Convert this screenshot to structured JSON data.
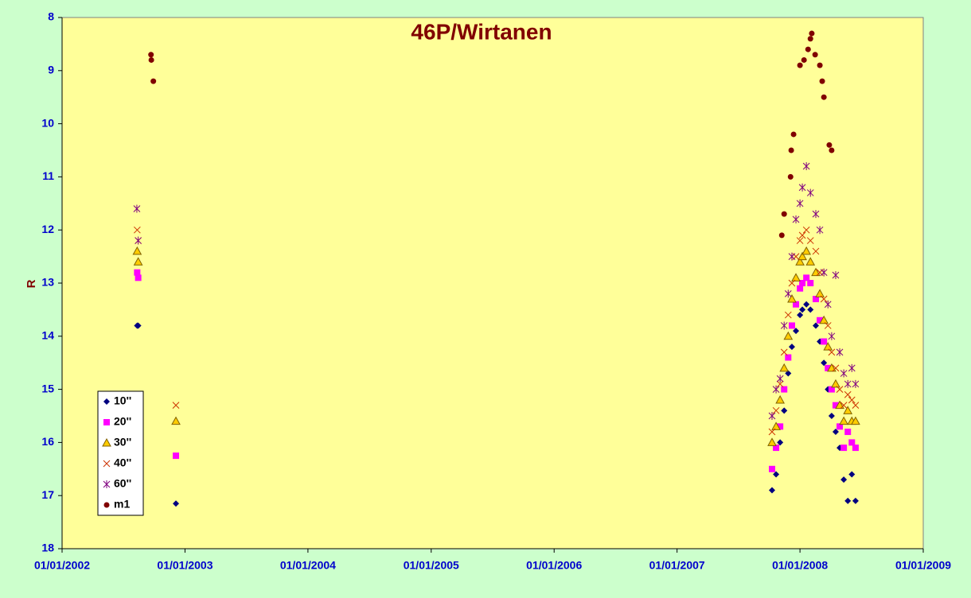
{
  "chart_data": {
    "type": "scatter",
    "title": "46P/Wirtanen",
    "ylabel": "R",
    "xlim": [
      "01/01/2002",
      "01/01/2009"
    ],
    "xticks": [
      "01/01/2002",
      "01/01/2003",
      "01/01/2004",
      "01/01/2005",
      "01/01/2006",
      "01/01/2007",
      "01/01/2008",
      "01/01/2009"
    ],
    "ylim": [
      18,
      8
    ],
    "yticks": [
      8,
      9,
      10,
      11,
      12,
      13,
      14,
      15,
      16,
      17,
      18
    ],
    "legend": "lower-left",
    "grid": false,
    "series": [
      {
        "name": "10''",
        "color": "#000080",
        "marker": "diamond",
        "x": [
          "12/08/2002",
          "15/08/2002",
          "05/12/2002",
          "10/10/2007",
          "22/10/2007",
          "03/11/2007",
          "15/11/2007",
          "27/11/2007",
          "08/12/2007",
          "20/12/2007",
          "01/01/2008",
          "08/01/2008",
          "20/01/2008",
          "01/02/2008",
          "17/02/2008",
          "29/02/2008",
          "12/03/2008",
          "24/03/2008",
          "04/04/2008",
          "16/04/2008",
          "28/04/2008",
          "10/05/2008",
          "22/05/2008",
          "03/06/2008",
          "14/06/2008"
        ],
        "values": [
          13.8,
          13.8,
          17.15,
          16.9,
          16.6,
          16.0,
          15.4,
          14.7,
          14.2,
          13.9,
          13.6,
          13.5,
          13.4,
          13.5,
          13.8,
          14.1,
          14.5,
          15.0,
          15.5,
          15.8,
          16.1,
          16.7,
          17.1,
          16.6,
          17.1
        ]
      },
      {
        "name": "20''",
        "color": "#ff00ff",
        "marker": "square",
        "x": [
          "12/08/2002",
          "15/08/2002",
          "05/12/2002",
          "10/10/2007",
          "22/10/2007",
          "03/11/2007",
          "15/11/2007",
          "27/11/2007",
          "08/12/2007",
          "20/12/2007",
          "01/01/2008",
          "08/01/2008",
          "20/01/2008",
          "01/02/2008",
          "17/02/2008",
          "29/02/2008",
          "12/03/2008",
          "24/03/2008",
          "04/04/2008",
          "16/04/2008",
          "28/04/2008",
          "10/05/2008",
          "22/05/2008",
          "03/06/2008",
          "14/06/2008"
        ],
        "values": [
          12.8,
          12.9,
          16.25,
          16.5,
          16.1,
          15.7,
          15.0,
          14.4,
          13.8,
          13.4,
          13.1,
          13.0,
          12.9,
          13.0,
          13.3,
          13.7,
          14.1,
          14.6,
          15.0,
          15.3,
          15.7,
          16.1,
          15.8,
          16.0,
          16.1
        ]
      },
      {
        "name": "30''",
        "color": "#ffcc00",
        "marker": "triangle",
        "x": [
          "12/08/2002",
          "15/08/2002",
          "05/12/2002",
          "10/10/2007",
          "22/10/2007",
          "03/11/2007",
          "15/11/2007",
          "27/11/2007",
          "08/12/2007",
          "20/12/2007",
          "01/01/2008",
          "08/01/2008",
          "20/01/2008",
          "01/02/2008",
          "17/02/2008",
          "29/02/2008",
          "12/03/2008",
          "24/03/2008",
          "04/04/2008",
          "16/04/2008",
          "28/04/2008",
          "10/05/2008",
          "22/05/2008",
          "03/06/2008",
          "14/06/2008"
        ],
        "values": [
          12.4,
          12.6,
          15.6,
          16.0,
          15.7,
          15.2,
          14.6,
          14.0,
          13.3,
          12.9,
          12.6,
          12.5,
          12.4,
          12.6,
          12.8,
          13.2,
          13.7,
          14.2,
          14.6,
          14.9,
          15.3,
          15.6,
          15.4,
          15.6,
          15.6
        ]
      },
      {
        "name": "40''",
        "color": "#cc3300",
        "marker": "cross",
        "x": [
          "12/08/2002",
          "15/08/2002",
          "05/12/2002",
          "10/10/2007",
          "22/10/2007",
          "03/11/2007",
          "15/11/2007",
          "27/11/2007",
          "08/12/2007",
          "20/12/2007",
          "01/01/2008",
          "08/01/2008",
          "20/01/2008",
          "01/02/2008",
          "17/02/2008",
          "29/02/2008",
          "12/03/2008",
          "24/03/2008",
          "04/04/2008",
          "16/04/2008",
          "28/04/2008",
          "10/05/2008",
          "22/05/2008",
          "03/06/2008",
          "14/06/2008"
        ],
        "values": [
          12.0,
          12.2,
          15.3,
          15.8,
          15.4,
          14.9,
          14.3,
          13.6,
          13.0,
          12.5,
          12.2,
          12.1,
          12.0,
          12.2,
          12.4,
          12.8,
          13.3,
          13.8,
          14.3,
          14.6,
          15.0,
          15.3,
          15.1,
          15.2,
          15.3
        ]
      },
      {
        "name": "60''",
        "color": "#800080",
        "marker": "star",
        "x": [
          "11/08/2002",
          "15/08/2002",
          "10/10/2007",
          "22/10/2007",
          "03/11/2007",
          "15/11/2007",
          "27/11/2007",
          "08/12/2007",
          "20/12/2007",
          "01/01/2008",
          "08/01/2008",
          "20/01/2008",
          "01/02/2008",
          "17/02/2008",
          "29/02/2008",
          "12/03/2008",
          "24/03/2008",
          "04/04/2008",
          "16/04/2008",
          "28/04/2008",
          "10/05/2008",
          "22/05/2008",
          "03/06/2008",
          "14/06/2008"
        ],
        "values": [
          11.6,
          12.2,
          15.5,
          15.0,
          14.8,
          13.8,
          13.2,
          12.5,
          11.8,
          11.5,
          11.2,
          10.8,
          11.3,
          11.7,
          12.0,
          12.8,
          13.4,
          14.0,
          12.85,
          14.3,
          14.7,
          14.9,
          14.6,
          14.9
        ]
      },
      {
        "name": "m1",
        "color": "#800000",
        "marker": "circle",
        "x": [
          "22/09/2002",
          "23/09/2002",
          "29/09/2002",
          "08/11/2007",
          "15/11/2007",
          "04/12/2007",
          "06/12/2007",
          "13/12/2007",
          "01/01/2008",
          "13/01/2008",
          "25/01/2008",
          "01/02/2008",
          "05/02/2008",
          "15/02/2008",
          "29/02/2008",
          "07/03/2008",
          "12/03/2008",
          "28/03/2008",
          "04/04/2008"
        ],
        "values": [
          8.7,
          8.8,
          9.2,
          12.1,
          11.7,
          11.0,
          10.5,
          10.2,
          8.9,
          8.8,
          8.6,
          8.4,
          8.3,
          8.7,
          8.9,
          9.2,
          9.5,
          10.4,
          10.5
        ]
      }
    ]
  }
}
